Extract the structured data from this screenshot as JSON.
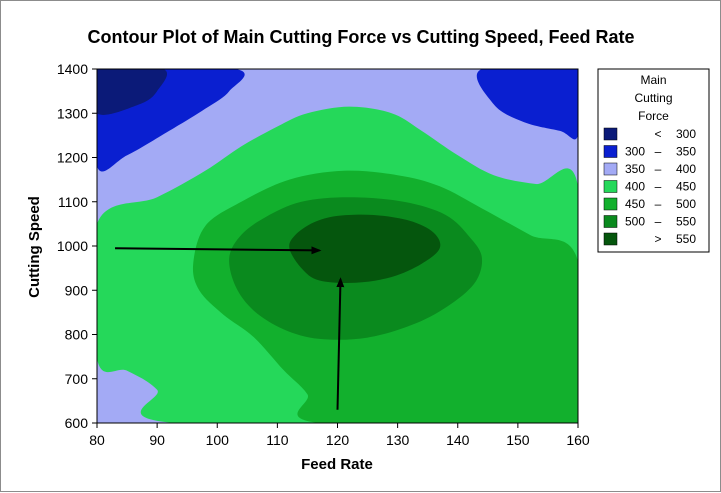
{
  "chart_data": {
    "type": "contour",
    "title": "Contour Plot of Main Cutting Force vs Cutting Speed, Feed Rate",
    "xlabel": "Feed Rate",
    "ylabel": "Cutting Speed",
    "xlim": [
      80,
      160
    ],
    "ylim": [
      600,
      1400
    ],
    "xticks": [
      "80",
      "90",
      "100",
      "110",
      "120",
      "130",
      "140",
      "150",
      "160"
    ],
    "yticks": [
      "600",
      "700",
      "800",
      "900",
      "1000",
      "1100",
      "1200",
      "1300",
      "1400"
    ],
    "z_label": "Main Cutting Force",
    "legend": {
      "title_lines": [
        "Main",
        "Cutting",
        "Force"
      ],
      "position": "right",
      "entries": [
        {
          "low": "",
          "sep": "<",
          "high": "300",
          "color": "#0b1a78"
        },
        {
          "low": "300",
          "sep": "–",
          "high": "350",
          "color": "#0a1fd0"
        },
        {
          "low": "350",
          "sep": "–",
          "high": "400",
          "color": "#a3aaf5"
        },
        {
          "low": "400",
          "sep": "–",
          "high": "450",
          "color": "#25d85a"
        },
        {
          "low": "450",
          "sep": "–",
          "high": "500",
          "color": "#12b02d"
        },
        {
          "low": "500",
          "sep": "–",
          "high": "550",
          "color": "#0a8a1e"
        },
        {
          "low": "",
          "sep": ">",
          "high": "550",
          "color": "#05560d"
        }
      ]
    },
    "regions": [
      {
        "level": "300-350",
        "color": "#0a1fd0",
        "points": [
          [
            80,
            1400
          ],
          [
            80,
            1180
          ],
          [
            85,
            1205
          ],
          [
            92,
            1260
          ],
          [
            98,
            1310
          ],
          [
            102,
            1350
          ],
          [
            103,
            1400
          ]
        ]
      },
      {
        "level": "< 300",
        "color": "#0b1a78",
        "points": [
          [
            80,
            1400
          ],
          [
            80,
            1300
          ],
          [
            87,
            1320
          ],
          [
            90,
            1350
          ],
          [
            91,
            1400
          ]
        ]
      },
      {
        "level": "300-350",
        "color": "#0a1fd0",
        "points": [
          [
            160,
            1400
          ],
          [
            160,
            1250
          ],
          [
            157,
            1260
          ],
          [
            151,
            1280
          ],
          [
            146,
            1320
          ],
          [
            144,
            1400
          ]
        ]
      },
      {
        "level": "350-400",
        "color": "#a3aaf5",
        "points": [
          [
            80,
            745
          ],
          [
            85,
            718
          ],
          [
            90,
            675
          ],
          [
            93,
            600
          ],
          [
            80,
            600
          ]
        ]
      },
      {
        "level": "400-450",
        "color": "#25d85a",
        "points": [
          [
            80,
            1050
          ],
          [
            90,
            1110
          ],
          [
            98,
            1170
          ],
          [
            104,
            1225
          ],
          [
            110,
            1270
          ],
          [
            115,
            1300
          ],
          [
            122,
            1315
          ],
          [
            129,
            1300
          ],
          [
            134,
            1260
          ],
          [
            140,
            1205
          ],
          [
            146,
            1160
          ],
          [
            153,
            1140
          ],
          [
            160,
            1135
          ],
          [
            160,
            600
          ],
          [
            93,
            600
          ],
          [
            90,
            675
          ],
          [
            85,
            718
          ],
          [
            80,
            745
          ]
        ]
      },
      {
        "level": "450-500",
        "color": "#12b02d",
        "points": [
          [
            160,
            965
          ],
          [
            152,
            1025
          ],
          [
            144,
            1085
          ],
          [
            137,
            1135
          ],
          [
            130,
            1160
          ],
          [
            121,
            1170
          ],
          [
            112,
            1150
          ],
          [
            104,
            1100
          ],
          [
            98,
            1045
          ],
          [
            96,
            960
          ],
          [
            97,
            900
          ],
          [
            101,
            845
          ],
          [
            106,
            795
          ],
          [
            111,
            720
          ],
          [
            115,
            665
          ],
          [
            117,
            600
          ],
          [
            160,
            600
          ]
        ]
      },
      {
        "level": "500-550",
        "color": "#0a8a1e",
        "points": [
          [
            102,
            975
          ],
          [
            104,
            1025
          ],
          [
            108,
            1065
          ],
          [
            114,
            1100
          ],
          [
            122,
            1110
          ],
          [
            131,
            1100
          ],
          [
            138,
            1070
          ],
          [
            142,
            1020
          ],
          [
            144,
            975
          ],
          [
            143,
            920
          ],
          [
            139,
            870
          ],
          [
            133,
            825
          ],
          [
            125,
            793
          ],
          [
            117,
            790
          ],
          [
            111,
            812
          ],
          [
            106,
            855
          ],
          [
            103,
            910
          ]
        ]
      },
      {
        "level": "> 550",
        "color": "#05560d",
        "points": [
          [
            112,
            995
          ],
          [
            113,
            1025
          ],
          [
            116,
            1053
          ],
          [
            120,
            1068
          ],
          [
            126,
            1070
          ],
          [
            132,
            1057
          ],
          [
            136,
            1030
          ],
          [
            137,
            995
          ],
          [
            134,
            960
          ],
          [
            129,
            930
          ],
          [
            123,
            917
          ],
          [
            117,
            922
          ],
          [
            114,
            950
          ]
        ]
      }
    ],
    "annotations": [
      {
        "type": "arrow",
        "from": [
          83,
          995
        ],
        "to": [
          117,
          990
        ]
      },
      {
        "type": "arrow",
        "from": [
          120,
          630
        ],
        "to": [
          120.5,
          925
        ]
      }
    ]
  }
}
